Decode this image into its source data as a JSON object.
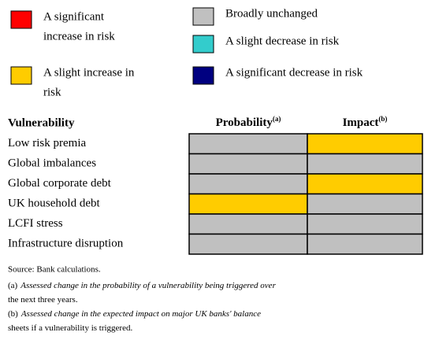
{
  "legend": [
    {
      "label_lines": [
        "A significant",
        "increase in risk"
      ],
      "color": "#ff0000"
    },
    {
      "label_lines": [
        "Broadly unchanged"
      ],
      "color": "#c0c0c0"
    },
    {
      "label_lines": [
        "A slight decrease in risk"
      ],
      "color": "#33cccc"
    },
    {
      "label_lines": [
        "A slight increase in",
        "risk"
      ],
      "color": "#ffcc00"
    },
    {
      "label_lines": [
        "A significant decrease in risk"
      ],
      "color": "#000080"
    }
  ],
  "table": {
    "header": {
      "row_label": "Vulnerability",
      "columns": [
        {
          "text": "Probability",
          "sup": "(a)"
        },
        {
          "text": "Impact",
          "sup": "(b)"
        }
      ]
    },
    "rows": [
      {
        "label": "Low risk premia",
        "cells": [
          "#c0c0c0",
          "#ffcc00"
        ]
      },
      {
        "label": "Global imbalances",
        "cells": [
          "#c0c0c0",
          "#c0c0c0"
        ]
      },
      {
        "label": "Global corporate debt",
        "cells": [
          "#c0c0c0",
          "#ffcc00"
        ]
      },
      {
        "label": "UK household debt",
        "cells": [
          "#ffcc00",
          "#c0c0c0"
        ]
      },
      {
        "label": "LCFI stress",
        "cells": [
          "#c0c0c0",
          "#c0c0c0"
        ]
      },
      {
        "label": "Infrastructure disruption",
        "cells": [
          "#c0c0c0",
          "#c0c0c0"
        ]
      }
    ]
  },
  "notes": {
    "source": "Source: Bank calculations.",
    "items": [
      {
        "marker": "(a)",
        "lines": [
          "Assessed change in the probability of a vulnerability being triggered over",
          "the next three years."
        ]
      },
      {
        "marker": "(b)",
        "lines": [
          "Assessed change in the expected impact on major UK banks' balance",
          "sheets if a vulnerability is triggered."
        ]
      }
    ]
  }
}
